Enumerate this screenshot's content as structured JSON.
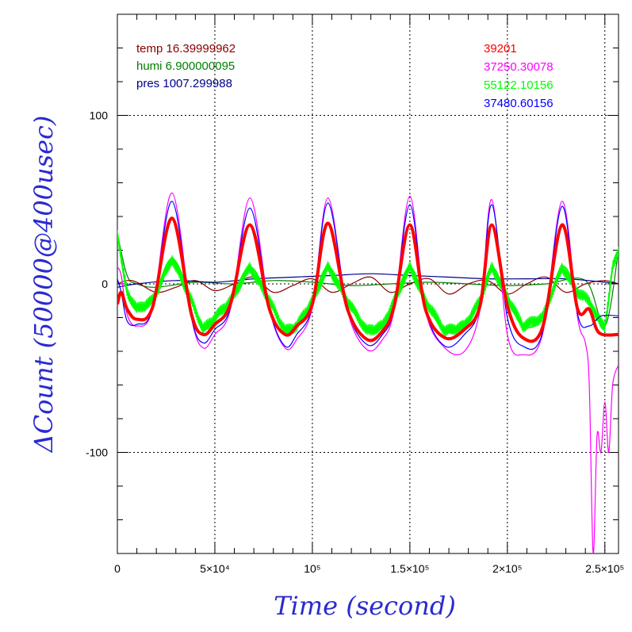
{
  "chart_data": {
    "type": "line",
    "title": "",
    "xlabel": "Time (second)",
    "ylabel": "ΔCount (50000@400usec)",
    "xlim": [
      0,
      257000
    ],
    "ylim": [
      -160,
      160
    ],
    "grid": true,
    "x_ticks": [
      {
        "value": 0,
        "label": "0"
      },
      {
        "value": 50000,
        "label": "5×10⁴"
      },
      {
        "value": 100000,
        "label": "10⁵"
      },
      {
        "value": 150000,
        "label": "1.5×10⁵"
      },
      {
        "value": 200000,
        "label": "2×10⁵"
      },
      {
        "value": 250000,
        "label": "2.5×10⁵"
      }
    ],
    "y_ticks": [
      {
        "value": 100,
        "label": "100"
      },
      {
        "value": 0,
        "label": "0"
      },
      {
        "value": -100,
        "label": "-100"
      }
    ],
    "legend_left": [
      {
        "label": "temp 16.39999962",
        "color": "#8b0000"
      },
      {
        "label": "humi 6.900000095",
        "color": "#008000"
      },
      {
        "label": "pres 1007.299988",
        "color": "#00008b"
      }
    ],
    "legend_right": [
      {
        "label": "39201",
        "color": "#ff0000"
      },
      {
        "label": "37250.30078",
        "color": "#ff00ff"
      },
      {
        "label": "55122.10156",
        "color": "#00ff00"
      },
      {
        "label": "37480.60156",
        "color": "#0000ff"
      }
    ],
    "series": [
      {
        "color": "#ff0000",
        "style": "thick",
        "x": [
          0,
          2000,
          5000,
          10000,
          18000,
          28000,
          38000,
          44000,
          50000,
          58000,
          68000,
          78000,
          86000,
          92000,
          100000,
          108000,
          118000,
          128000,
          136000,
          142000,
          150000,
          158000,
          168000,
          178000,
          186000,
          192000,
          200000,
          208000,
          218000,
          228000,
          236000,
          242000,
          247000,
          257000
        ],
        "y": [
          -12,
          -5,
          -15,
          -21,
          -14,
          39,
          -18,
          -30,
          -24,
          -12,
          35,
          -15,
          -30,
          -25,
          -12,
          36,
          -15,
          -33,
          -28,
          -13,
          35,
          -15,
          -32,
          -27,
          -13,
          35,
          -13,
          -32,
          -26,
          35,
          -15,
          -15,
          -29,
          -30
        ]
      },
      {
        "color": "#ff00ff",
        "style": "thin",
        "x": [
          0,
          2000,
          5000,
          10000,
          18000,
          28000,
          38000,
          44000,
          50000,
          58000,
          68000,
          78000,
          86000,
          92000,
          100000,
          108000,
          118000,
          128000,
          136000,
          142000,
          150000,
          158000,
          168000,
          178000,
          186000,
          192000,
          200000,
          208000,
          218000,
          228000,
          236000,
          240000,
          242000,
          244000,
          246000,
          248000,
          250000,
          252000,
          254000,
          257000
        ],
        "y": [
          10,
          5,
          -18,
          -25,
          -15,
          54,
          -20,
          -38,
          -30,
          -15,
          51,
          -15,
          -38,
          -33,
          -14,
          51,
          -16,
          -39,
          -33,
          -15,
          52,
          -16,
          -38,
          -40,
          -15,
          50,
          -30,
          -42,
          -30,
          49,
          -20,
          -35,
          -60,
          -160,
          -90,
          -100,
          -70,
          -100,
          -60,
          -48
        ]
      },
      {
        "color": "#00ff00",
        "style": "noisy",
        "x": [
          0,
          2000,
          5000,
          10000,
          18000,
          28000,
          38000,
          44000,
          50000,
          58000,
          68000,
          78000,
          86000,
          92000,
          100000,
          108000,
          118000,
          128000,
          136000,
          142000,
          150000,
          158000,
          168000,
          178000,
          186000,
          192000,
          200000,
          208000,
          218000,
          228000,
          236000,
          242000,
          246000,
          250000,
          254000,
          257000
        ],
        "y": [
          30,
          15,
          -5,
          -15,
          -10,
          15,
          -10,
          -27,
          -20,
          -10,
          10,
          -10,
          -28,
          -25,
          -10,
          10,
          -10,
          -28,
          -25,
          -10,
          10,
          -10,
          -28,
          -25,
          -10,
          10,
          -8,
          -25,
          -20,
          10,
          -5,
          -10,
          -20,
          -25,
          10,
          20
        ]
      },
      {
        "color": "#0000ff",
        "style": "thin",
        "x": [
          0,
          2000,
          5000,
          10000,
          18000,
          28000,
          38000,
          44000,
          50000,
          58000,
          68000,
          78000,
          86000,
          92000,
          100000,
          108000,
          118000,
          128000,
          136000,
          142000,
          150000,
          158000,
          168000,
          178000,
          186000,
          192000,
          200000,
          208000,
          218000,
          228000,
          236000,
          242000,
          248000,
          257000
        ],
        "y": [
          3,
          -5,
          -22,
          -24,
          -15,
          49,
          -20,
          -35,
          -27,
          -14,
          45,
          -15,
          -37,
          -30,
          -13,
          48,
          -15,
          -36,
          -30,
          -14,
          47,
          -15,
          -37,
          -30,
          -13,
          47,
          -20,
          -37,
          -29,
          46,
          -18,
          -25,
          -19,
          -19
        ]
      },
      {
        "color": "#8b0000",
        "style": "thin",
        "x": [
          0,
          5000,
          10000,
          20000,
          30000,
          40000,
          50000,
          60000,
          70000,
          80000,
          90000,
          100000,
          110000,
          120000,
          130000,
          140000,
          150000,
          160000,
          170000,
          180000,
          190000,
          200000,
          210000,
          220000,
          230000,
          240000,
          250000,
          257000
        ],
        "y": [
          0,
          2,
          1,
          -5,
          -2,
          2,
          -4,
          0,
          4,
          -5,
          -1,
          3,
          -5,
          0,
          4,
          -5,
          0,
          3,
          -6,
          0,
          2,
          -6,
          0,
          4,
          -5,
          0,
          2,
          0
        ]
      },
      {
        "color": "#008000",
        "style": "thin",
        "x": [
          0,
          5000,
          10000,
          20000,
          40000,
          60000,
          80000,
          100000,
          120000,
          140000,
          160000,
          180000,
          200000,
          220000,
          240000,
          250000,
          257000
        ],
        "y": [
          30,
          5,
          0,
          -2,
          1,
          0,
          2,
          1,
          -1,
          0,
          1,
          0,
          -1,
          0,
          2,
          -25,
          20
        ]
      },
      {
        "color": "#00008b",
        "style": "thin",
        "x": [
          0,
          10000,
          30000,
          50000,
          70000,
          90000,
          110000,
          130000,
          150000,
          170000,
          190000,
          210000,
          230000,
          250000,
          257000
        ],
        "y": [
          -2,
          0,
          2,
          1,
          3,
          4,
          5,
          6,
          5,
          4,
          3,
          3,
          3,
          1,
          0
        ]
      }
    ]
  }
}
